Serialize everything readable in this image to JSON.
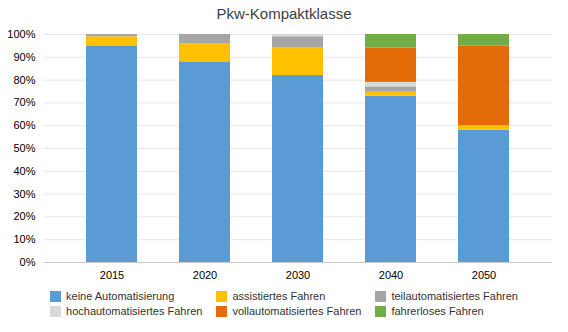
{
  "chart_data": {
    "type": "bar",
    "stacked": true,
    "title": "Pkw-Kompaktklasse",
    "categories": [
      "2015",
      "2020",
      "2030",
      "2040",
      "2050"
    ],
    "series": [
      {
        "name": "keine Automatisierung",
        "color": "#5B9BD5",
        "values": [
          95,
          88,
          82,
          73,
          58
        ]
      },
      {
        "name": "assistiertes Fahren",
        "color": "#FFC000",
        "values": [
          4,
          8,
          12,
          2,
          2
        ]
      },
      {
        "name": "teilautomatisiertes Fahren",
        "color": "#A5A5A5",
        "values": [
          1,
          4,
          5,
          2,
          0
        ]
      },
      {
        "name": "hochautomatisiertes Fahren",
        "color": "#D9D9D9",
        "values": [
          0,
          0,
          1,
          2,
          0
        ]
      },
      {
        "name": "vollautomatisiertes Fahren",
        "color": "#E36C09",
        "values": [
          0,
          0,
          0,
          15,
          35
        ]
      },
      {
        "name": "fahrerloses Fahren",
        "color": "#70AD47",
        "values": [
          0,
          0,
          0,
          6,
          5
        ]
      }
    ],
    "ylim": [
      0,
      100
    ],
    "yticks": [
      {
        "value": 0,
        "label": "0%"
      },
      {
        "value": 10,
        "label": "10%"
      },
      {
        "value": 20,
        "label": "20%"
      },
      {
        "value": 30,
        "label": "30%"
      },
      {
        "value": 40,
        "label": "40%"
      },
      {
        "value": 50,
        "label": "50%"
      },
      {
        "value": 60,
        "label": "60%"
      },
      {
        "value": 70,
        "label": "70%"
      },
      {
        "value": 80,
        "label": "80%"
      },
      {
        "value": 90,
        "label": "90%"
      },
      {
        "value": 100,
        "label": "100%"
      }
    ],
    "grid": true,
    "legend": "bottom"
  }
}
